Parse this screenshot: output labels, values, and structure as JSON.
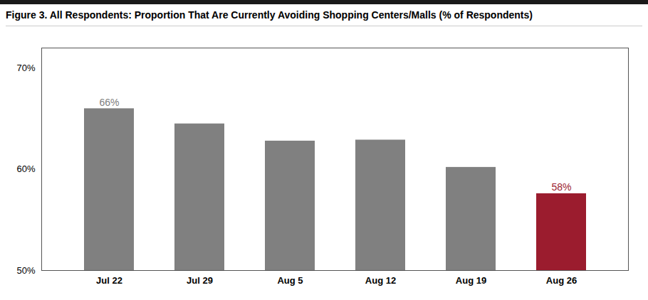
{
  "chart_data": {
    "type": "bar",
    "title": "Figure 3. All Respondents: Proportion That Are Currently Avoiding Shopping Centers/Malls (% of Respondents)",
    "categories": [
      "Jul 22",
      "Jul 29",
      "Aug 5",
      "Aug 12",
      "Aug 19",
      "Aug 26"
    ],
    "values": [
      0.66,
      0.645,
      0.628,
      0.629,
      0.602,
      0.576
    ],
    "value_labels": [
      "66%",
      null,
      null,
      null,
      null,
      "58%"
    ],
    "data_labels": true,
    "colors": [
      "#808080",
      "#808080",
      "#808080",
      "#808080",
      "#808080",
      "#9b1c2e"
    ],
    "ylim": [
      0.5,
      0.72
    ],
    "yticks": [
      {
        "value": 0.5,
        "label": "50%"
      },
      {
        "value": 0.6,
        "label": "60%"
      },
      {
        "value": 0.7,
        "label": "70%"
      }
    ],
    "grid": false
  }
}
